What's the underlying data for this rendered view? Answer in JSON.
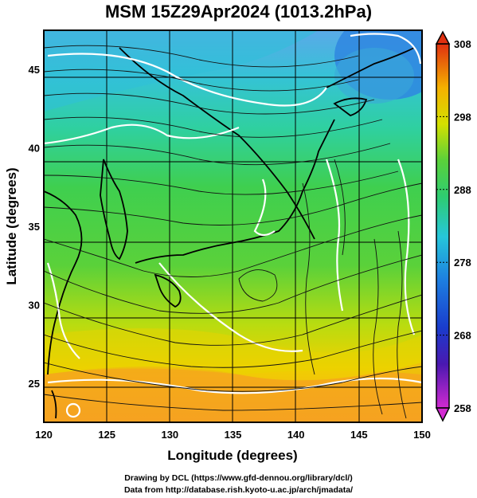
{
  "title": "MSM 15Z29Apr2024 (1013.2hPa)",
  "map": {
    "lon_range": [
      120,
      150
    ],
    "lat_range": [
      22.5,
      47.5
    ],
    "x_ticks": [
      120,
      125,
      130,
      135,
      140,
      145,
      150
    ],
    "y_ticks": [
      25,
      30,
      35,
      40,
      45
    ],
    "xlabel": "Longitude (degrees)",
    "ylabel": "Latitude  (degrees)",
    "field": "temperature (K), shaded, with streamlines and white contours",
    "colors": {
      "cold": "#1e6fdc",
      "cyan": "#33c7c7",
      "green": "#3fcf4f",
      "yellow": "#e6e600",
      "orange": "#f5a623",
      "contour": "#ffffff",
      "coast": "#000000",
      "streamline": "#111111"
    }
  },
  "colorbar": {
    "ticks": [
      308,
      298,
      288,
      278,
      268,
      258
    ],
    "range": [
      258,
      308
    ],
    "colors": [
      "#d12ad1",
      "#1a1acc",
      "#1d7ee0",
      "#26c6da",
      "#2ecc71",
      "#5ad13a",
      "#d4e000",
      "#f5c400",
      "#f58a00",
      "#e03010"
    ]
  },
  "credits": {
    "line1": "Drawing by DCL (https://www.gfd-dennou.org/library/dcl/)",
    "line2": "Data from http://database.rish.kyoto-u.ac.jp/arch/jmadata/"
  }
}
